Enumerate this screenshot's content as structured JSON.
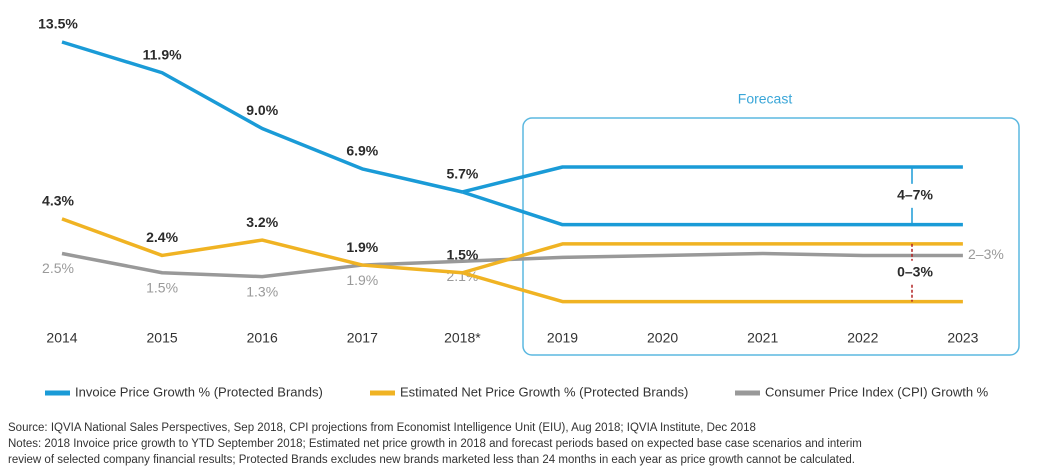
{
  "chart_data": {
    "type": "line",
    "categories": [
      "2014",
      "2015",
      "2016",
      "2017",
      "2018*",
      "2019",
      "2020",
      "2021",
      "2022",
      "2023"
    ],
    "forecast": {
      "label": "Forecast",
      "start": 5
    },
    "series": [
      {
        "name": "Invoice Price Growth % (Protected Brands)",
        "color": "#1a9bd7",
        "values": [
          13.5,
          11.9,
          9.0,
          6.9,
          5.7,
          null,
          null,
          null,
          null,
          null
        ],
        "value_labels": [
          "13.5%",
          "11.9%",
          "9.0%",
          "6.9%",
          "5.7%",
          null,
          null,
          null,
          null,
          null
        ],
        "forecast_high": [
          null,
          null,
          null,
          null,
          null,
          7,
          7,
          7,
          7,
          7
        ],
        "forecast_low": [
          null,
          null,
          null,
          null,
          null,
          4,
          4,
          4,
          4,
          4
        ],
        "range_label": "4–7%"
      },
      {
        "name": "Estimated Net Price Growth % (Protected Brands)",
        "color": "#f0b323",
        "values": [
          4.3,
          2.4,
          3.2,
          1.9,
          1.5,
          null,
          null,
          null,
          null,
          null
        ],
        "value_labels": [
          "4.3%",
          "2.4%",
          "3.2%",
          "1.9%",
          "1.5%",
          null,
          null,
          null,
          null,
          null
        ],
        "forecast_high": [
          null,
          null,
          null,
          null,
          null,
          3,
          3,
          3,
          3,
          3
        ],
        "forecast_low": [
          null,
          null,
          null,
          null,
          null,
          0,
          0,
          0,
          0,
          0
        ],
        "range_label": "0–3%"
      },
      {
        "name": "Consumer Price Index (CPI) Growth %",
        "color": "#999999",
        "values": [
          2.5,
          1.5,
          1.3,
          1.9,
          2.1,
          2.3,
          2.4,
          2.5,
          2.4,
          2.4
        ],
        "value_labels": [
          "2.5%",
          "1.5%",
          "1.3%",
          "1.9%",
          "2.1%",
          null,
          null,
          null,
          null,
          null
        ],
        "range_label": "2–3%"
      }
    ],
    "source": "Source: IQVIA National Sales Perspectives, Sep 2018, CPI projections from Economist Intelligence Unit (EIU), Aug 2018; IQVIA Institute, Dec 2018",
    "notes": [
      "Notes: 2018 Invoice price growth to YTD September 2018; Estimated net price growth in 2018 and forecast periods based on expected base case scenarios and interim",
      "review of selected company financial results; Protected Brands excludes new brands marketed less than 24 months in each year as price growth cannot be calculated."
    ]
  }
}
